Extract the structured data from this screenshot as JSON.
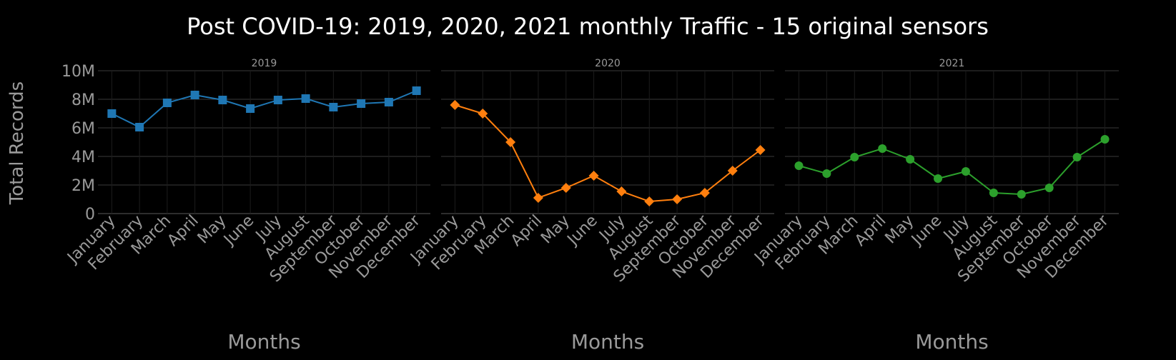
{
  "chart_data": {
    "type": "line",
    "title": "Post COVID-19: 2019, 2020, 2021 monthly Traffic - 15 original sensors",
    "ylabel": "Total Records",
    "xlabel": "Months",
    "ylim": [
      0,
      10000000
    ],
    "y_ticks": [
      {
        "value": 0,
        "label": "0"
      },
      {
        "value": 2000000,
        "label": "2M"
      },
      {
        "value": 4000000,
        "label": "4M"
      },
      {
        "value": 6000000,
        "label": "6M"
      },
      {
        "value": 8000000,
        "label": "8M"
      },
      {
        "value": 10000000,
        "label": "10M"
      }
    ],
    "categories": [
      "January",
      "February",
      "March",
      "April",
      "May",
      "June",
      "July",
      "August",
      "September",
      "October",
      "November",
      "December"
    ],
    "grid": true,
    "panels": [
      {
        "subtitle": "2019",
        "color": "#1f77b4",
        "marker": "square",
        "values": [
          7000000,
          6050000,
          7750000,
          8300000,
          7950000,
          7350000,
          7950000,
          8050000,
          7450000,
          7700000,
          7800000,
          8600000
        ]
      },
      {
        "subtitle": "2020",
        "color": "#ff7f0e",
        "marker": "diamond",
        "values": [
          7600000,
          7000000,
          5000000,
          1100000,
          1800000,
          2650000,
          1550000,
          850000,
          1000000,
          1450000,
          3000000,
          4450000
        ]
      },
      {
        "subtitle": "2021",
        "color": "#2ca02c",
        "marker": "circle",
        "values": [
          3350000,
          2800000,
          3950000,
          4550000,
          3800000,
          2450000,
          2950000,
          1450000,
          1350000,
          1800000,
          3950000,
          5200000
        ]
      }
    ]
  },
  "colors": {
    "background": "#000000",
    "grid": "#3a3a3a",
    "text": "#ffffff",
    "tick_text": "#9a9a9a"
  }
}
